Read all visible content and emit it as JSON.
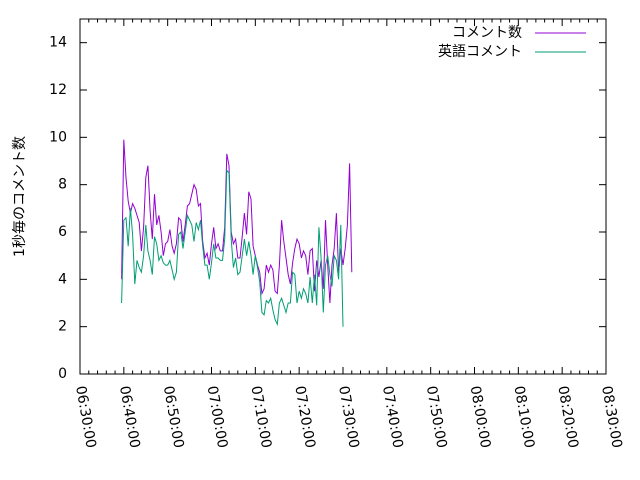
{
  "chart_data": {
    "type": "line",
    "title": "",
    "xlabel": "",
    "ylabel": "1秒毎のコメント数",
    "x_range": [
      "06:30:00",
      "08:30:00"
    ],
    "ylim": [
      0,
      15
    ],
    "y_ticks": [
      0,
      2,
      4,
      6,
      8,
      10,
      12,
      14
    ],
    "x_ticks": [
      "06:30:00",
      "06:40:00",
      "06:50:00",
      "07:00:00",
      "07:10:00",
      "07:20:00",
      "07:30:00",
      "07:40:00",
      "07:50:00",
      "08:00:00",
      "08:10:00",
      "08:20:00",
      "08:30:00"
    ],
    "grid": false,
    "legend_position": "top-right",
    "series": [
      {
        "name": "コメント数",
        "color": "#9400d3",
        "points": [
          [
            "06:39:30",
            4.0
          ],
          [
            "06:40:00",
            9.9
          ],
          [
            "06:40:30",
            8.3
          ],
          [
            "06:41:00",
            7.3
          ],
          [
            "06:41:30",
            6.8
          ],
          [
            "06:42:00",
            7.2
          ],
          [
            "06:42:30",
            7.0
          ],
          [
            "06:43:00",
            6.7
          ],
          [
            "06:43:30",
            6.4
          ],
          [
            "06:44:00",
            5.2
          ],
          [
            "06:44:30",
            6.2
          ],
          [
            "06:45:00",
            8.3
          ],
          [
            "06:45:30",
            8.8
          ],
          [
            "06:46:00",
            6.9
          ],
          [
            "06:46:30",
            5.7
          ],
          [
            "06:47:00",
            7.6
          ],
          [
            "06:47:30",
            6.3
          ],
          [
            "06:48:00",
            6.7
          ],
          [
            "06:48:30",
            6.0
          ],
          [
            "06:49:00",
            5.0
          ],
          [
            "06:49:30",
            5.5
          ],
          [
            "06:50:00",
            5.6
          ],
          [
            "06:50:30",
            6.1
          ],
          [
            "06:51:00",
            5.4
          ],
          [
            "06:51:30",
            5.1
          ],
          [
            "06:52:00",
            5.5
          ],
          [
            "06:52:30",
            6.6
          ],
          [
            "06:53:00",
            6.5
          ],
          [
            "06:53:30",
            5.6
          ],
          [
            "06:54:00",
            6.3
          ],
          [
            "06:54:30",
            7.1
          ],
          [
            "06:55:00",
            7.2
          ],
          [
            "06:55:30",
            7.6
          ],
          [
            "06:56:00",
            8.0
          ],
          [
            "06:56:30",
            7.8
          ],
          [
            "06:57:00",
            7.1
          ],
          [
            "06:57:30",
            7.2
          ],
          [
            "06:58:00",
            5.6
          ],
          [
            "06:58:30",
            4.9
          ],
          [
            "06:59:00",
            5.1
          ],
          [
            "06:59:30",
            4.6
          ],
          [
            "07:00:00",
            5.5
          ],
          [
            "07:00:30",
            6.2
          ],
          [
            "07:01:00",
            5.3
          ],
          [
            "07:01:30",
            5.5
          ],
          [
            "07:02:00",
            5.2
          ],
          [
            "07:02:30",
            5.2
          ],
          [
            "07:03:00",
            6.2
          ],
          [
            "07:03:30",
            9.3
          ],
          [
            "07:04:00",
            8.8
          ],
          [
            "07:04:30",
            6.0
          ],
          [
            "07:05:00",
            5.5
          ],
          [
            "07:05:30",
            5.7
          ],
          [
            "07:06:00",
            4.9
          ],
          [
            "07:06:30",
            4.9
          ],
          [
            "07:07:00",
            5.8
          ],
          [
            "07:07:30",
            6.8
          ],
          [
            "07:08:00",
            5.9
          ],
          [
            "07:08:30",
            7.7
          ],
          [
            "07:09:00",
            7.4
          ],
          [
            "07:09:30",
            5.4
          ],
          [
            "07:10:00",
            5.0
          ],
          [
            "07:10:30",
            4.6
          ],
          [
            "07:11:00",
            4.3
          ],
          [
            "07:11:30",
            3.4
          ],
          [
            "07:12:00",
            3.6
          ],
          [
            "07:12:30",
            4.6
          ],
          [
            "07:13:00",
            4.3
          ],
          [
            "07:13:30",
            4.6
          ],
          [
            "07:14:00",
            4.4
          ],
          [
            "07:14:30",
            3.5
          ],
          [
            "07:15:00",
            3.4
          ],
          [
            "07:15:30",
            4.6
          ],
          [
            "07:16:00",
            6.5
          ],
          [
            "07:16:30",
            5.6
          ],
          [
            "07:17:00",
            4.9
          ],
          [
            "07:17:30",
            4.2
          ],
          [
            "07:18:00",
            3.8
          ],
          [
            "07:18:30",
            4.7
          ],
          [
            "07:19:00",
            5.3
          ],
          [
            "07:19:30",
            5.7
          ],
          [
            "07:20:00",
            5.5
          ],
          [
            "07:20:30",
            4.9
          ],
          [
            "07:21:00",
            5.2
          ],
          [
            "07:21:30",
            5.0
          ],
          [
            "07:22:00",
            4.2
          ],
          [
            "07:22:30",
            5.2
          ],
          [
            "07:23:00",
            5.3
          ],
          [
            "07:23:30",
            3.5
          ],
          [
            "07:24:00",
            4.8
          ],
          [
            "07:24:30",
            4.1
          ],
          [
            "07:25:00",
            4.8
          ],
          [
            "07:25:30",
            3.6
          ],
          [
            "07:26:00",
            6.5
          ],
          [
            "07:26:30",
            4.6
          ],
          [
            "07:27:00",
            3.0
          ],
          [
            "07:27:30",
            4.6
          ],
          [
            "07:28:00",
            5.3
          ],
          [
            "07:28:30",
            6.8
          ],
          [
            "07:29:00",
            4.3
          ],
          [
            "07:29:30",
            5.3
          ],
          [
            "07:30:00",
            4.6
          ],
          [
            "07:30:30",
            5.3
          ],
          [
            "07:31:00",
            6.3
          ],
          [
            "07:31:30",
            8.9
          ],
          [
            "07:32:00",
            4.3
          ]
        ]
      },
      {
        "name": "英語コメント",
        "color": "#009e73",
        "points": [
          [
            "06:39:30",
            3.0
          ],
          [
            "06:40:00",
            6.5
          ],
          [
            "06:40:30",
            6.6
          ],
          [
            "06:41:00",
            5.4
          ],
          [
            "06:41:30",
            7.0
          ],
          [
            "06:42:00",
            5.9
          ],
          [
            "06:42:30",
            3.8
          ],
          [
            "06:43:00",
            4.8
          ],
          [
            "06:43:30",
            4.5
          ],
          [
            "06:44:00",
            4.3
          ],
          [
            "06:44:30",
            5.0
          ],
          [
            "06:45:00",
            6.3
          ],
          [
            "06:45:30",
            5.2
          ],
          [
            "06:46:00",
            4.8
          ],
          [
            "06:46:30",
            4.2
          ],
          [
            "06:47:00",
            5.8
          ],
          [
            "06:47:30",
            5.5
          ],
          [
            "06:48:00",
            4.8
          ],
          [
            "06:48:30",
            5.0
          ],
          [
            "06:49:00",
            4.7
          ],
          [
            "06:49:30",
            4.6
          ],
          [
            "06:50:00",
            4.6
          ],
          [
            "06:50:30",
            4.8
          ],
          [
            "06:51:00",
            4.4
          ],
          [
            "06:51:30",
            4.0
          ],
          [
            "06:52:00",
            4.3
          ],
          [
            "06:52:30",
            5.9
          ],
          [
            "06:53:00",
            6.0
          ],
          [
            "06:53:30",
            5.3
          ],
          [
            "06:54:00",
            6.0
          ],
          [
            "06:54:30",
            6.7
          ],
          [
            "06:55:00",
            6.5
          ],
          [
            "06:55:30",
            6.3
          ],
          [
            "06:56:00",
            5.6
          ],
          [
            "06:56:30",
            6.4
          ],
          [
            "06:57:00",
            6.1
          ],
          [
            "06:57:30",
            6.5
          ],
          [
            "06:58:00",
            5.4
          ],
          [
            "06:58:30",
            4.6
          ],
          [
            "06:59:00",
            4.6
          ],
          [
            "06:59:30",
            4.0
          ],
          [
            "07:00:00",
            4.7
          ],
          [
            "07:00:30",
            5.5
          ],
          [
            "07:01:00",
            4.9
          ],
          [
            "07:01:30",
            4.9
          ],
          [
            "07:02:00",
            4.8
          ],
          [
            "07:02:30",
            4.8
          ],
          [
            "07:03:00",
            5.7
          ],
          [
            "07:03:30",
            8.6
          ],
          [
            "07:04:00",
            8.5
          ],
          [
            "07:04:30",
            5.7
          ],
          [
            "07:05:00",
            4.5
          ],
          [
            "07:05:30",
            4.9
          ],
          [
            "07:06:00",
            4.2
          ],
          [
            "07:06:30",
            4.3
          ],
          [
            "07:07:00",
            5.0
          ],
          [
            "07:07:30",
            5.7
          ],
          [
            "07:08:00",
            5.0
          ],
          [
            "07:08:30",
            5.6
          ],
          [
            "07:09:00",
            5.0
          ],
          [
            "07:09:30",
            4.2
          ],
          [
            "07:10:00",
            5.0
          ],
          [
            "07:10:30",
            4.5
          ],
          [
            "07:11:00",
            3.9
          ],
          [
            "07:11:30",
            2.6
          ],
          [
            "07:12:00",
            2.5
          ],
          [
            "07:12:30",
            3.1
          ],
          [
            "07:13:00",
            3.0
          ],
          [
            "07:13:30",
            3.2
          ],
          [
            "07:14:00",
            2.7
          ],
          [
            "07:14:30",
            2.3
          ],
          [
            "07:15:00",
            2.1
          ],
          [
            "07:15:30",
            3.0
          ],
          [
            "07:16:00",
            3.2
          ],
          [
            "07:16:30",
            2.9
          ],
          [
            "07:17:00",
            2.6
          ],
          [
            "07:17:30",
            3.0
          ],
          [
            "07:18:00",
            3.0
          ],
          [
            "07:18:30",
            4.3
          ],
          [
            "07:19:00",
            4.2
          ],
          [
            "07:19:30",
            3.0
          ],
          [
            "07:20:00",
            3.5
          ],
          [
            "07:20:30",
            3.2
          ],
          [
            "07:21:00",
            3.6
          ],
          [
            "07:21:30",
            3.4
          ],
          [
            "07:22:00",
            3.0
          ],
          [
            "07:22:30",
            4.1
          ],
          [
            "07:23:00",
            3.0
          ],
          [
            "07:23:30",
            4.2
          ],
          [
            "07:24:00",
            2.9
          ],
          [
            "07:24:30",
            6.2
          ],
          [
            "07:25:00",
            4.9
          ],
          [
            "07:25:30",
            2.6
          ],
          [
            "07:26:00",
            4.6
          ],
          [
            "07:26:30",
            5.0
          ],
          [
            "07:27:00",
            4.2
          ],
          [
            "07:27:30",
            3.7
          ],
          [
            "07:28:00",
            5.0
          ],
          [
            "07:28:30",
            4.8
          ],
          [
            "07:29:00",
            4.0
          ],
          [
            "07:29:30",
            6.3
          ],
          [
            "07:30:00",
            2.0
          ]
        ]
      }
    ]
  }
}
